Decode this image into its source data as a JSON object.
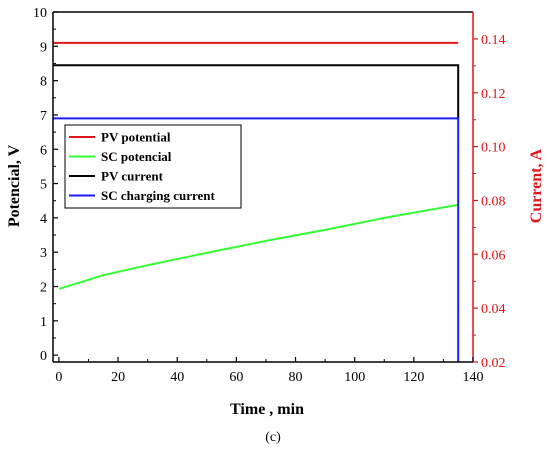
{
  "chart_data": {
    "type": "line",
    "xlabel": "Time , min",
    "ylabel_left": "Potencial, V",
    "ylabel_right": "Current, A",
    "xlim": [
      -2,
      140
    ],
    "ylim_left": [
      -0.2,
      10
    ],
    "ylim_right": [
      0.02,
      0.15
    ],
    "x_ticks": [
      0,
      20,
      40,
      60,
      80,
      100,
      120,
      140
    ],
    "y_left_ticks": [
      0,
      1,
      2,
      3,
      4,
      5,
      6,
      7,
      8,
      9,
      10
    ],
    "y_right_ticks": [
      0.02,
      0.04,
      0.06,
      0.08,
      0.1,
      0.12,
      0.14
    ],
    "y_right_tick_labels": [
      "0.02",
      "0.04",
      "0.06",
      "0.08",
      "0.10",
      "0.12",
      "0.14"
    ],
    "legend_position": "center-left",
    "grid": false,
    "series": [
      {
        "name": "PV potential",
        "axis": "left",
        "color": "#e0161b",
        "x": [
          -2,
          135
        ],
        "y": [
          9.1,
          9.1
        ]
      },
      {
        "name": "SC potencial",
        "axis": "left",
        "color": "#33ff33",
        "x": [
          0,
          15,
          30,
          50,
          70,
          90,
          110,
          135
        ],
        "y": [
          1.93,
          2.33,
          2.62,
          2.98,
          3.33,
          3.65,
          4.0,
          4.38
        ]
      },
      {
        "name": "PV current",
        "axis": "left",
        "color": "#000000",
        "x": [
          -2,
          135,
          135
        ],
        "y": [
          8.45,
          8.45,
          6.9
        ]
      },
      {
        "name": "SC charging current",
        "axis": "left",
        "color": "#1b1bff",
        "x": [
          -2,
          135,
          135
        ],
        "y": [
          6.9,
          6.9,
          -0.2
        ]
      }
    ]
  },
  "caption": "(c)"
}
